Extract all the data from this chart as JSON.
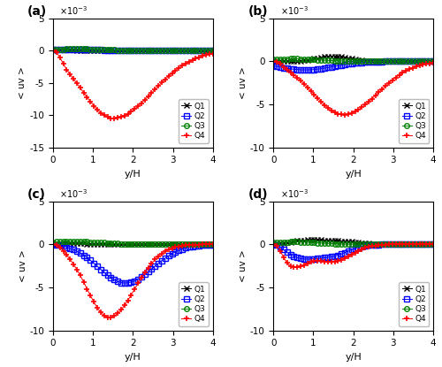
{
  "panels": [
    "(a)",
    "(b)",
    "(c)",
    "(d)"
  ],
  "xlim": [
    0,
    4
  ],
  "ylim_a": [
    -0.015,
    0.005
  ],
  "ylim_b": [
    -0.01,
    0.005
  ],
  "ylim_c": [
    -0.01,
    0.005
  ],
  "ylim_d": [
    -0.01,
    0.005
  ],
  "yticks_a": [
    -0.015,
    -0.01,
    -0.005,
    0.0,
    0.005
  ],
  "yticks_bcd": [
    -0.01,
    -0.005,
    0.0,
    0.005
  ],
  "xlabel": "y/H",
  "ylabel": "< uv >",
  "legend_labels": [
    "Q1",
    "Q2",
    "Q3",
    "Q4"
  ],
  "colors": [
    "black",
    "blue",
    "green",
    "red"
  ],
  "markers": [
    "x",
    "s",
    "o",
    "+"
  ]
}
